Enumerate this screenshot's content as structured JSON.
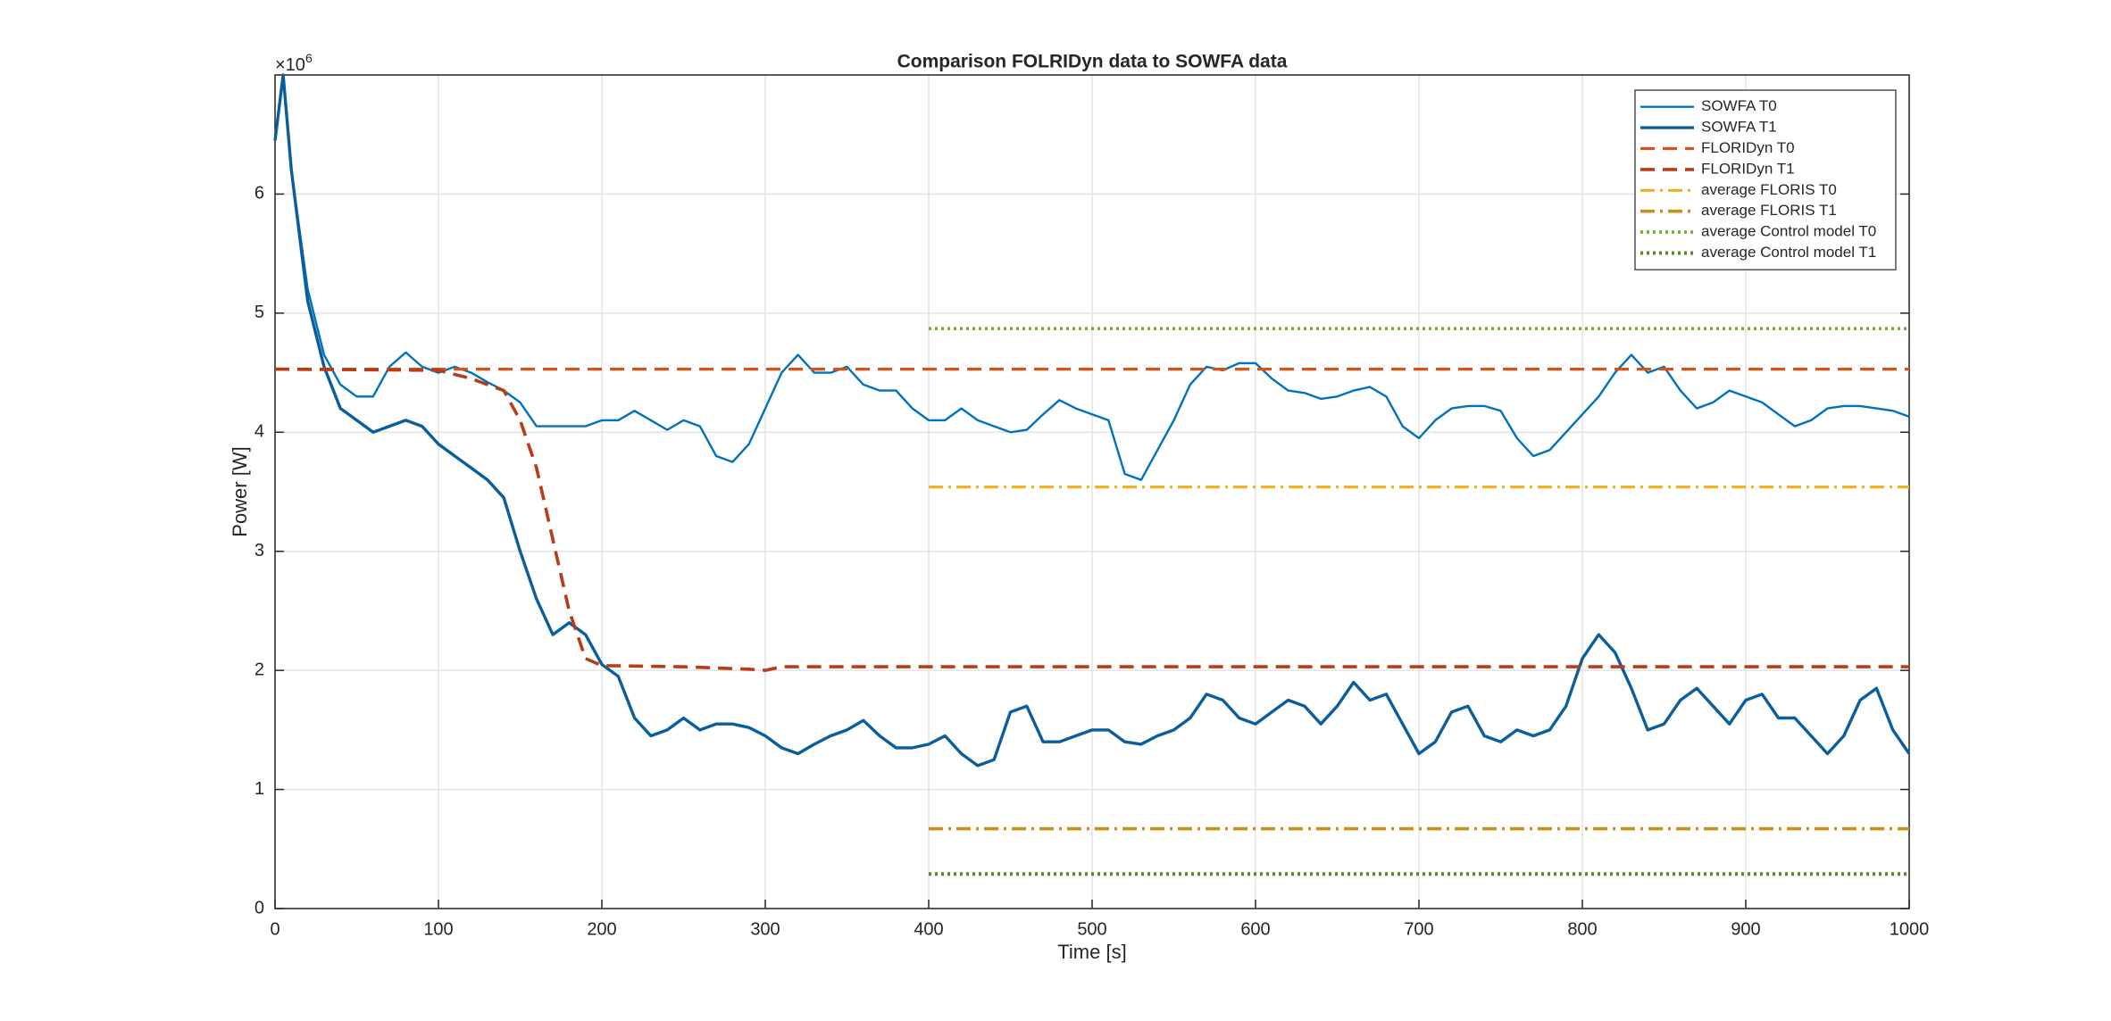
{
  "chart_data": {
    "type": "line",
    "title": "Comparison FOLRIDyn data to SOWFA data",
    "xlabel": "Time [s]",
    "ylabel": "Power [W]",
    "y_multiplier": {
      "base": "×10",
      "exponent": "6"
    },
    "xlim": [
      0,
      1000
    ],
    "ylim": [
      0,
      7
    ],
    "xticks": [
      0,
      100,
      200,
      300,
      400,
      500,
      600,
      700,
      800,
      900,
      1000
    ],
    "yticks": [
      0,
      1,
      2,
      3,
      4,
      5,
      6
    ],
    "grid": true,
    "legend": "upper right",
    "series": [
      {
        "name": "SOWFA T0",
        "color": "#0072bd",
        "line_style": "solid",
        "width": 2.4,
        "x": [
          0,
          5,
          10,
          20,
          30,
          40,
          50,
          60,
          70,
          80,
          90,
          100,
          110,
          120,
          130,
          140,
          150,
          160,
          170,
          180,
          190,
          200,
          210,
          220,
          230,
          240,
          250,
          260,
          270,
          280,
          290,
          300,
          310,
          320,
          330,
          340,
          350,
          360,
          370,
          380,
          390,
          400,
          410,
          420,
          430,
          440,
          450,
          460,
          470,
          480,
          490,
          500,
          510,
          520,
          530,
          540,
          550,
          560,
          570,
          580,
          590,
          600,
          610,
          620,
          630,
          640,
          650,
          660,
          670,
          680,
          690,
          700,
          710,
          720,
          730,
          740,
          750,
          760,
          770,
          780,
          790,
          800,
          810,
          820,
          830,
          840,
          850,
          860,
          870,
          880,
          890,
          900,
          910,
          920,
          930,
          940,
          950,
          960,
          970,
          980,
          990,
          1000
        ],
        "values": [
          6.45,
          7.0,
          6.2,
          5.2,
          4.65,
          4.4,
          4.3,
          4.3,
          4.55,
          4.67,
          4.55,
          4.5,
          4.55,
          4.5,
          4.42,
          4.35,
          4.25,
          4.05,
          4.05,
          4.05,
          4.05,
          4.1,
          4.1,
          4.18,
          4.1,
          4.02,
          4.1,
          4.05,
          3.8,
          3.75,
          3.9,
          4.2,
          4.5,
          4.65,
          4.5,
          4.5,
          4.55,
          4.4,
          4.35,
          4.35,
          4.2,
          4.1,
          4.1,
          4.2,
          4.1,
          4.05,
          4.0,
          4.02,
          4.15,
          4.27,
          4.2,
          4.15,
          4.1,
          3.65,
          3.6,
          3.85,
          4.1,
          4.4,
          4.55,
          4.52,
          4.58,
          4.58,
          4.45,
          4.35,
          4.33,
          4.28,
          4.3,
          4.35,
          4.38,
          4.3,
          4.05,
          3.95,
          4.1,
          4.2,
          4.22,
          4.22,
          4.18,
          3.95,
          3.8,
          3.85,
          4.0,
          4.15,
          4.3,
          4.5,
          4.65,
          4.5,
          4.55,
          4.35,
          4.2,
          4.25,
          4.35,
          4.3,
          4.25,
          4.15,
          4.05,
          4.1,
          4.2,
          4.22,
          4.22,
          4.2,
          4.18,
          4.13
        ]
      },
      {
        "name": "SOWFA T1",
        "color": "#0a5e9c",
        "line_style": "solid",
        "width": 3.4,
        "x": [
          0,
          5,
          10,
          20,
          30,
          40,
          50,
          60,
          70,
          80,
          90,
          100,
          110,
          120,
          130,
          140,
          150,
          160,
          170,
          180,
          190,
          200,
          210,
          220,
          230,
          240,
          250,
          260,
          270,
          280,
          290,
          300,
          310,
          320,
          330,
          340,
          350,
          360,
          370,
          380,
          390,
          400,
          410,
          420,
          430,
          440,
          450,
          460,
          470,
          480,
          490,
          500,
          510,
          520,
          530,
          540,
          550,
          560,
          570,
          580,
          590,
          600,
          610,
          620,
          630,
          640,
          650,
          660,
          670,
          680,
          690,
          700,
          710,
          720,
          730,
          740,
          750,
          760,
          770,
          780,
          790,
          800,
          810,
          820,
          830,
          840,
          850,
          860,
          870,
          880,
          890,
          900,
          910,
          920,
          930,
          940,
          950,
          960,
          970,
          980,
          990,
          1000
        ],
        "values": [
          6.45,
          7.0,
          6.2,
          5.1,
          4.55,
          4.2,
          4.1,
          4.0,
          4.05,
          4.1,
          4.05,
          3.9,
          3.8,
          3.7,
          3.6,
          3.45,
          3.0,
          2.6,
          2.3,
          2.4,
          2.3,
          2.05,
          1.95,
          1.6,
          1.45,
          1.5,
          1.6,
          1.5,
          1.55,
          1.55,
          1.52,
          1.45,
          1.35,
          1.3,
          1.38,
          1.45,
          1.5,
          1.58,
          1.45,
          1.35,
          1.35,
          1.38,
          1.45,
          1.3,
          1.2,
          1.25,
          1.65,
          1.7,
          1.4,
          1.4,
          1.45,
          1.5,
          1.5,
          1.4,
          1.38,
          1.45,
          1.5,
          1.6,
          1.8,
          1.75,
          1.6,
          1.55,
          1.65,
          1.75,
          1.7,
          1.55,
          1.7,
          1.9,
          1.75,
          1.8,
          1.55,
          1.3,
          1.4,
          1.65,
          1.7,
          1.45,
          1.4,
          1.5,
          1.45,
          1.5,
          1.7,
          2.1,
          2.3,
          2.15,
          1.85,
          1.5,
          1.55,
          1.75,
          1.85,
          1.7,
          1.55,
          1.75,
          1.8,
          1.6,
          1.6,
          1.45,
          1.3,
          1.45,
          1.75,
          1.85,
          1.5,
          1.3
        ]
      },
      {
        "name": "FLORIDyn T0",
        "color": "#d95319",
        "line_style": "dashed",
        "width": 3.2,
        "x": [
          0,
          1000
        ],
        "values": [
          4.53,
          4.53
        ]
      },
      {
        "name": "FLORIDyn T1",
        "color": "#b83c18",
        "line_style": "dashed",
        "width": 3.6,
        "x": [
          0,
          100,
          120,
          140,
          150,
          160,
          170,
          180,
          190,
          200,
          250,
          290,
          300,
          310,
          1000
        ],
        "values": [
          4.53,
          4.52,
          4.45,
          4.35,
          4.1,
          3.7,
          3.1,
          2.5,
          2.1,
          2.04,
          2.03,
          2.01,
          2.0,
          2.03,
          2.03
        ]
      },
      {
        "name": "average FLORIS T0",
        "color": "#edb120",
        "line_style": "dashdot",
        "width": 3.2,
        "x": [
          400,
          1000
        ],
        "values": [
          3.54,
          3.54
        ]
      },
      {
        "name": "average FLORIS T1",
        "color": "#c8901a",
        "line_style": "dashdot",
        "width": 3.6,
        "x": [
          400,
          1000
        ],
        "values": [
          0.67,
          0.67
        ]
      },
      {
        "name": "average Control model T0",
        "color": "#77ac30",
        "line_style": "dotted",
        "width": 3.6,
        "x": [
          400,
          1000
        ],
        "values": [
          4.87,
          4.87
        ]
      },
      {
        "name": "average Control model T1",
        "color": "#5a8a25",
        "line_style": "dotted",
        "width": 4.0,
        "x": [
          400,
          1000
        ],
        "values": [
          0.29,
          0.29
        ]
      }
    ]
  }
}
